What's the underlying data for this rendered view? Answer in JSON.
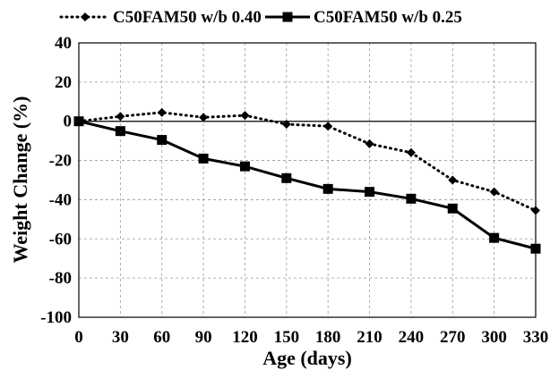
{
  "chart_data": {
    "type": "line",
    "xlabel": "Age (days)",
    "ylabel": "Weight Change (%)",
    "xlim": [
      0,
      330
    ],
    "ylim": [
      -100,
      40
    ],
    "x_ticks": [
      0,
      30,
      60,
      90,
      120,
      150,
      180,
      210,
      240,
      270,
      300,
      330
    ],
    "y_ticks": [
      40,
      20,
      0,
      -20,
      -40,
      -60,
      -80,
      -100
    ],
    "x_tick_labels": [
      "0",
      "30",
      "60",
      "90",
      "120",
      "150",
      "180",
      "210",
      "240",
      "270",
      "300",
      "330"
    ],
    "y_tick_labels": [
      "40",
      "20",
      "0",
      "-20",
      "-40",
      "-60",
      "-80",
      "-100"
    ],
    "grid": "dashed",
    "legend_position": "top",
    "series": [
      {
        "name": "C50FAM50 w/b 0.40",
        "line_style": "dotted",
        "marker": "diamond",
        "color": "#000000",
        "x": [
          0,
          30,
          60,
          90,
          120,
          150,
          180,
          210,
          240,
          270,
          300,
          330
        ],
        "values": [
          0,
          2.5,
          4.5,
          2,
          3,
          -1.5,
          -2.5,
          -11.5,
          -16,
          -30,
          -36,
          -45.5
        ]
      },
      {
        "name": "C50FAM50 w/b 0.25",
        "line_style": "solid",
        "marker": "square",
        "color": "#000000",
        "x": [
          0,
          30,
          60,
          90,
          120,
          150,
          180,
          210,
          240,
          270,
          300,
          330
        ],
        "values": [
          0,
          -5,
          -9.5,
          -19,
          -23,
          -29,
          -34.5,
          -36,
          -39.5,
          -44.5,
          -59.5,
          -65
        ]
      }
    ]
  }
}
